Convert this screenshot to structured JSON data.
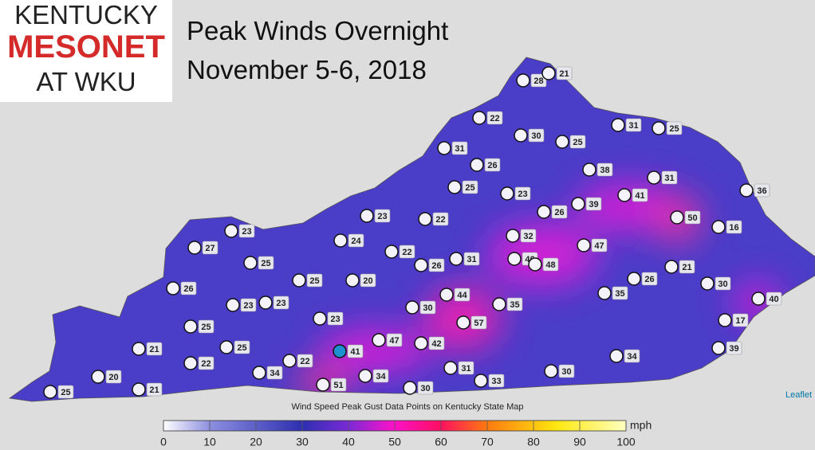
{
  "logo": {
    "line1": "KENTUCKY",
    "line2": "MESONET",
    "line3": "AT WKU"
  },
  "title": {
    "line1": "Peak Winds Overnight",
    "line2": "November 5-6, 2018"
  },
  "stations": [
    28,
    21,
    22,
    30,
    25,
    31,
    25,
    31,
    26,
    25,
    23,
    38,
    31,
    36,
    39,
    41,
    26,
    23,
    22,
    50,
    16,
    23,
    27,
    24,
    32,
    47,
    22,
    25,
    26,
    31,
    46,
    48,
    21,
    25,
    20,
    26,
    30,
    26,
    44,
    35,
    23,
    23,
    30,
    35,
    40,
    23,
    57,
    17,
    25,
    47,
    42,
    25,
    41,
    21,
    39,
    34,
    22,
    22,
    34,
    31,
    34,
    30,
    33,
    20,
    51,
    30,
    21,
    25
  ],
  "caption": "Wind Speed Peak Gust Data Points on Kentucky State Map",
  "attribution": "Leaflet",
  "colorbar": {
    "ticks": [
      0,
      10,
      20,
      30,
      40,
      50,
      60,
      70,
      80,
      90,
      100
    ],
    "unit": "mph"
  }
}
